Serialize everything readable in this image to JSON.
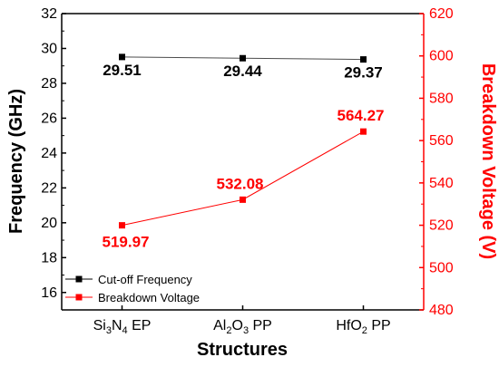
{
  "chart_data": {
    "type": "line",
    "categories": [
      {
        "label": "Si3N4 EP",
        "base1": "Si",
        "sub1": "3",
        "base2": "N",
        "sub2": "4",
        "suffix": " EP"
      },
      {
        "label": "Al2O3 PP",
        "base1": "Al",
        "sub1": "2",
        "base2": "O",
        "sub2": "3",
        "suffix": " PP"
      },
      {
        "label": "HfO2 PP",
        "base1": "HfO",
        "sub1": "2",
        "base2": "",
        "sub2": "",
        "suffix": " PP"
      }
    ],
    "xlabel": "Structures",
    "ylabel_left": "Frequency (GHz)",
    "ylabel_right": "Breakdown Voltage (V)",
    "ylim_left": [
      15,
      32
    ],
    "yticks_left": [
      16,
      18,
      20,
      22,
      24,
      26,
      28,
      30,
      32
    ],
    "ylim_right": [
      480,
      620
    ],
    "yticks_right": [
      480,
      500,
      520,
      540,
      560,
      580,
      600,
      620
    ],
    "grid": false,
    "legend_position": "bottom-left",
    "series": [
      {
        "name": "Cut-off Frequency",
        "axis": "left",
        "color": "#000000",
        "values": [
          29.51,
          29.44,
          29.37
        ],
        "labels": [
          "29.51",
          "29.44",
          "29.37"
        ]
      },
      {
        "name": "Breakdown Voltage",
        "axis": "right",
        "color": "#ff0000",
        "values": [
          519.97,
          532.08,
          564.27
        ],
        "labels": [
          "519.97",
          "532.08",
          "564.27"
        ]
      }
    ]
  }
}
